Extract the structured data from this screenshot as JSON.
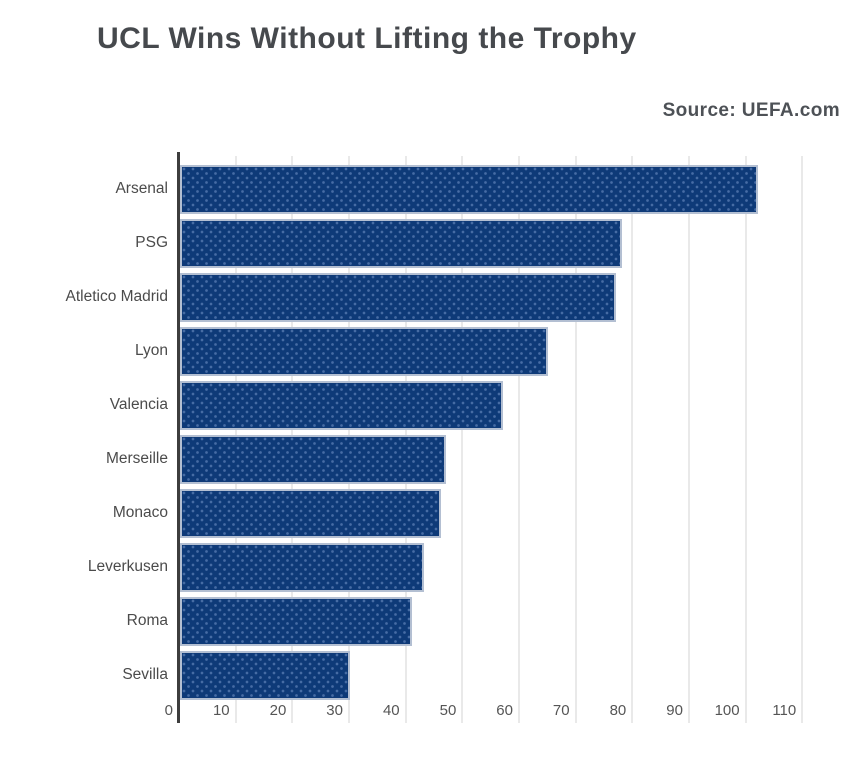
{
  "title": "UCL Wins Without Lifting the Trophy",
  "source": "Source: UEFA.com",
  "chart_data": {
    "type": "bar",
    "orientation": "horizontal",
    "title": "UCL Wins Without Lifting the Trophy",
    "source": "Source: UEFA.com",
    "categories": [
      "Arsenal",
      "PSG",
      "Atletico Madrid",
      "Lyon",
      "Valencia",
      "Merseille",
      "Monaco",
      "Leverkusen",
      "Roma",
      "Sevilla"
    ],
    "values": [
      102,
      78,
      77,
      65,
      57,
      47,
      46,
      43,
      41,
      30
    ],
    "xlabel": "",
    "ylabel": "",
    "xlim": [
      0,
      110
    ],
    "xticks": [
      0,
      10,
      20,
      30,
      40,
      50,
      60,
      70,
      80,
      90,
      100,
      110
    ],
    "grid": true,
    "legend": false
  },
  "colors": {
    "background": "#ffffff",
    "bar_fill": "#0e3a78",
    "bar_dot_texture": "rgba(140,170,220,0.45)",
    "bar_border": "#b3bfd2",
    "gridline": "#e9e9e9",
    "axis_line": "#3d3d3d",
    "title_text": "#46494d",
    "source_text": "#4d5156",
    "category_text": "#4b4b4b",
    "tick_text": "#555555"
  }
}
